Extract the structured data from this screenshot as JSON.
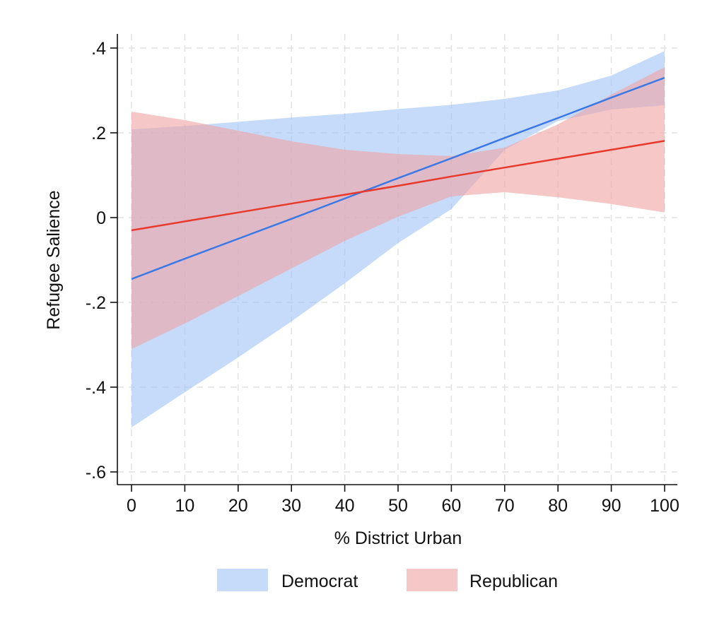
{
  "chart_data": {
    "type": "line",
    "title": "",
    "xlabel": "% District Urban",
    "ylabel": "Refugee Salience",
    "xlim": [
      0,
      100
    ],
    "ylim": [
      -0.62,
      0.42
    ],
    "x_ticks": [
      0,
      10,
      20,
      30,
      40,
      50,
      60,
      70,
      80,
      90,
      100
    ],
    "x_tick_labels": [
      "0",
      "10",
      "20",
      "30",
      "40",
      "50",
      "60",
      "70",
      "80",
      "90",
      "100"
    ],
    "y_ticks": [
      -0.6,
      -0.4,
      -0.2,
      0,
      0.2,
      0.4
    ],
    "y_tick_labels": [
      "-.6",
      "-.4",
      "-.2",
      "0",
      ".2",
      ".4"
    ],
    "grid": true,
    "legend_position": "bottom",
    "series": [
      {
        "name": "Democrat",
        "line_color": "#3b78e7",
        "band_color": "#9fc3f5",
        "x": [
          0,
          10,
          20,
          30,
          40,
          50,
          60,
          70,
          80,
          90,
          100
        ],
        "y": [
          -0.145,
          -0.097,
          -0.05,
          -0.003,
          0.045,
          0.093,
          0.14,
          0.188,
          0.235,
          0.283,
          0.33
        ],
        "ci_lower": [
          -0.495,
          -0.412,
          -0.33,
          -0.245,
          -0.155,
          -0.06,
          0.02,
          0.16,
          0.228,
          0.255,
          0.265
        ],
        "ci_upper": [
          0.208,
          0.216,
          0.226,
          0.236,
          0.245,
          0.256,
          0.266,
          0.28,
          0.3,
          0.335,
          0.393
        ]
      },
      {
        "name": "Republican",
        "line_color": "#e8392d",
        "band_color": "#f0a2a2",
        "x": [
          0,
          10,
          20,
          30,
          40,
          50,
          60,
          70,
          80,
          90,
          100
        ],
        "y": [
          -0.03,
          -0.009,
          0.012,
          0.033,
          0.054,
          0.075,
          0.097,
          0.118,
          0.139,
          0.16,
          0.181
        ],
        "ci_lower": [
          -0.31,
          -0.25,
          -0.185,
          -0.12,
          -0.055,
          0.002,
          0.05,
          0.06,
          0.048,
          0.032,
          0.012
        ],
        "ci_upper": [
          0.25,
          0.23,
          0.205,
          0.18,
          0.16,
          0.15,
          0.145,
          0.165,
          0.22,
          0.29,
          0.355
        ]
      }
    ]
  }
}
